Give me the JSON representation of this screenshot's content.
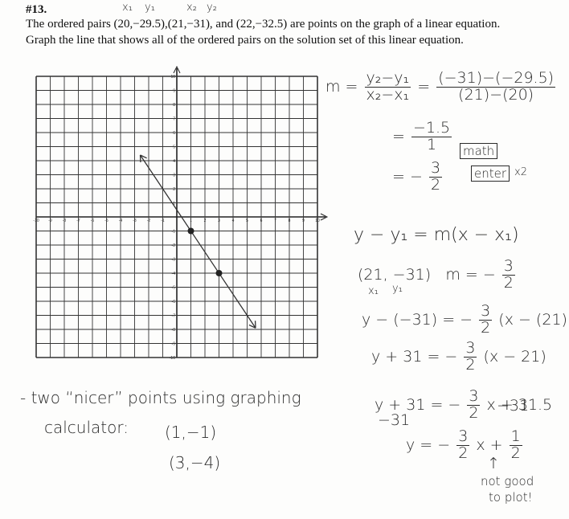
{
  "problem": {
    "number": "#13.",
    "line1": "The ordered pairs (20,−29.5),(21,−31), and (22,−32.5) are points on the graph of a linear equation.",
    "line2": "Graph the line that shows all of the ordered pairs  on the solution set of this linear equation."
  },
  "labels_above": [
    "x₁",
    "y₁",
    "x₂",
    "y₂"
  ],
  "graph": {
    "ticks": [
      -10,
      -9,
      -8,
      -7,
      -6,
      -5,
      -4,
      -3,
      -2,
      -1,
      1,
      2,
      3,
      4,
      5,
      6,
      7,
      8,
      9,
      10
    ],
    "points": [
      {
        "x": 1,
        "y": -1
      },
      {
        "x": 3,
        "y": -4
      }
    ],
    "line_x": [
      -2.6,
      5.6
    ]
  },
  "work": {
    "slope": {
      "m": "m =",
      "f1": {
        "num": "y₂−y₁",
        "den": "x₂−x₁"
      },
      "eq": "=",
      "f2": {
        "num": "(−31)−(−29.5)",
        "den": "(21)−(20)"
      }
    },
    "step2": {
      "eq": "=",
      "num": "−1.5",
      "den": "1"
    },
    "step3": {
      "eq": "= −",
      "num": "3",
      "den": "2"
    },
    "keys": [
      "math",
      "enter",
      "x2"
    ],
    "point_slope": "y − y₁ = m(x − x₁)",
    "given": {
      "point": "(21, −31)",
      "m": "m = −",
      "num": "3",
      "den": "2",
      "x1": "x₁",
      "y1": "y₁"
    },
    "sub": {
      "left": "y − (−31) = −",
      "num": "3",
      "den": "2",
      "right": "(x − (21))"
    },
    "simp": {
      "left": "y + 31 = −",
      "num": "3",
      "den": "2",
      "right": "(x − 21)"
    },
    "dist": {
      "left": "y + 31 = −",
      "num": "3",
      "den": "2",
      "right": "x + 31.5",
      "sub_left": "−31",
      "sub_right": "−31"
    },
    "final": {
      "left": "y = −",
      "num1": "3",
      "den1": "2",
      "mid": "x +",
      "num2": "1",
      "den2": "2"
    },
    "note": {
      "arrow": "↑",
      "line1": "not good",
      "line2": "to plot!"
    }
  },
  "left_notes": {
    "line1": "- two “nicer” points using graphing",
    "line2": "calculator:",
    "point1": "(1,−1)",
    "point2": "(3,−4)"
  }
}
